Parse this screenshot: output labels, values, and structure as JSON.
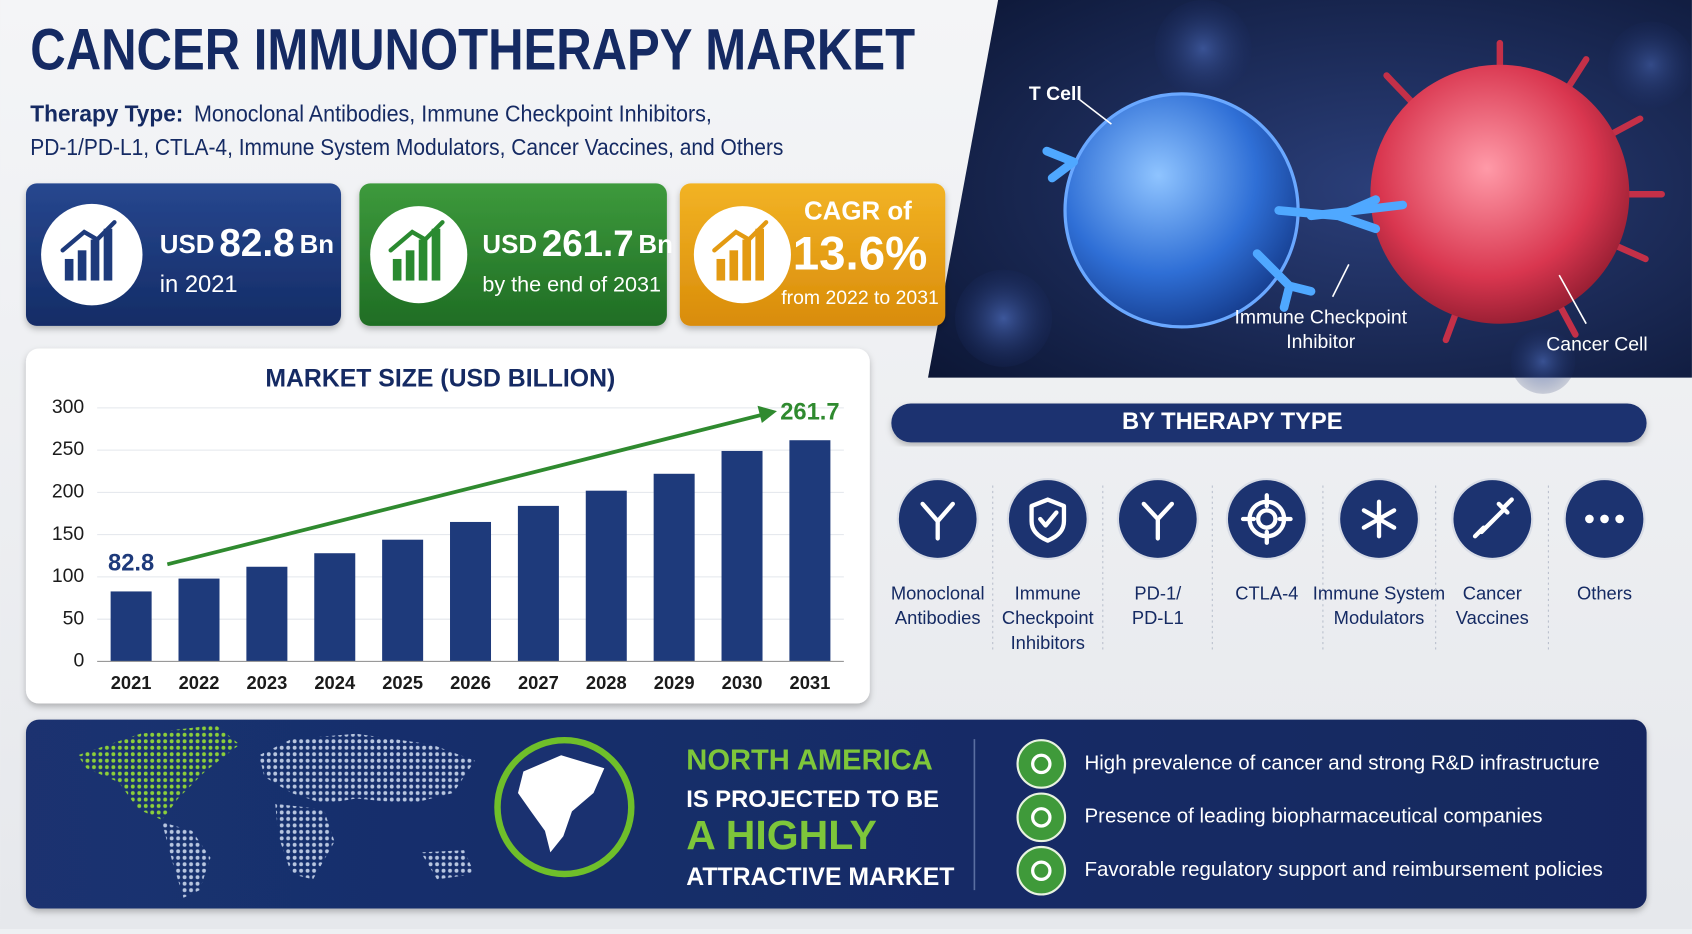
{
  "header": {
    "title": "CANCER IMMUNOTHERAPY MARKET",
    "subtitle_label": "Therapy Type:",
    "subtitle_line1": "Monoclonal Antibodies, Immune Checkpoint Inhibitors,",
    "subtitle_line2": "PD-1/PD-L1, CTLA-4, Immune System Modulators, Cancer Vaccines, and Others"
  },
  "stats": [
    {
      "prefix": "USD",
      "value": "82.8",
      "unit": "Bn",
      "note": "in 2021"
    },
    {
      "prefix": "USD",
      "value": "261.7",
      "unit": "Bn",
      "note": "by the end of 2031"
    },
    {
      "prefix": "CAGR of",
      "value": "13.6%",
      "note": "from 2022 to 2031"
    }
  ],
  "image_labels": {
    "t_cell": "T Cell",
    "inhibitor": [
      "Immune Checkpoint",
      "Inhibitor"
    ],
    "cancer_cell": "Cancer Cell"
  },
  "chart_data": {
    "type": "bar",
    "title": "MARKET SIZE (USD BILLION)",
    "categories": [
      "2021",
      "2022",
      "2023",
      "2024",
      "2025",
      "2026",
      "2027",
      "2028",
      "2029",
      "2030",
      "2031"
    ],
    "values": [
      82.8,
      98,
      112,
      128,
      144,
      165,
      184,
      202,
      222,
      249,
      261.7
    ],
    "value_labels": [
      "82.8",
      null,
      null,
      null,
      null,
      null,
      null,
      null,
      null,
      null,
      "261.7"
    ],
    "color": "#1e3a7b",
    "ylim": [
      0,
      300
    ],
    "yticks": [
      0,
      50,
      100,
      150,
      200,
      250,
      300
    ],
    "grid": true
  },
  "therapy_types": {
    "title": "BY THERAPY TYPE",
    "items": [
      [
        "Monoclonal",
        "Antibodies"
      ],
      [
        "Immune",
        "Checkpoint",
        "Inhibitors"
      ],
      [
        "PD-1/",
        "PD-L1"
      ],
      [
        "CTLA-4"
      ],
      [
        "Immune System",
        "Modulators"
      ],
      [
        "Cancer",
        "Vaccines"
      ],
      [
        "Others"
      ]
    ]
  },
  "region": {
    "lines": [
      "NORTH AMERICA",
      "IS PROJECTED TO BE",
      "A HIGHLY",
      "ATTRACTIVE MARKET"
    ],
    "drivers": [
      "High prevalence of cancer and strong R&D infrastructure",
      "Presence of leading biopharmaceutical companies",
      "Favorable regulatory support and reimbursement policies"
    ]
  }
}
